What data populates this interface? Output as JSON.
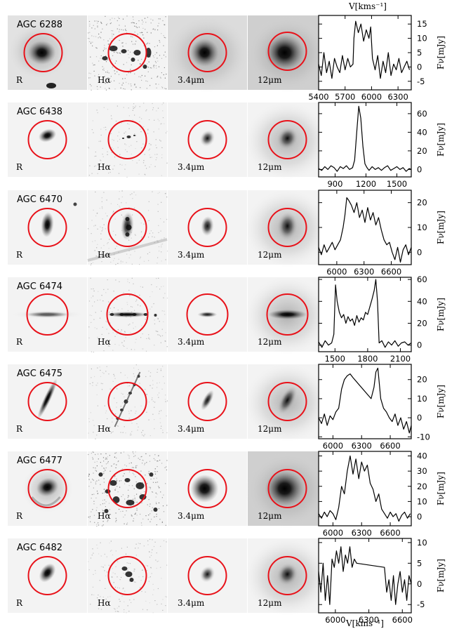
{
  "figure": {
    "top_axis_label": "V[kms⁻¹]",
    "bottom_axis_label": "V[kms⁻¹]",
    "flux_axis_label": "Fν[mJy]",
    "band_labels": [
      "R",
      "Hα",
      "3.4μm",
      "12μm"
    ],
    "colors": {
      "aperture": "#e8121a",
      "spectrum": "#000000"
    }
  },
  "galaxies": [
    {
      "name": "AGC 6288",
      "bands": [
        "R",
        "Hα",
        "3.4μm",
        "12μm"
      ],
      "morph": "round",
      "ha": "clumpy",
      "mid_ir": "extended"
    },
    {
      "name": "AGC 6438",
      "bands": [
        "R",
        "Hα",
        "3.4μm",
        "12μm"
      ],
      "morph": "small",
      "ha": "point",
      "mid_ir": "compact"
    },
    {
      "name": "AGC 6470",
      "bands": [
        "R",
        "Hα",
        "3.4μm",
        "12μm"
      ],
      "morph": "vertical",
      "ha": "knots",
      "mid_ir": "compact"
    },
    {
      "name": "AGC 6474",
      "bands": [
        "R",
        "Hα",
        "3.4μm",
        "12μm"
      ],
      "morph": "edge-on",
      "ha": "disk",
      "mid_ir": "edge-on"
    },
    {
      "name": "AGC 6475",
      "bands": [
        "R",
        "Hα",
        "3.4μm",
        "12μm"
      ],
      "morph": "tilted",
      "ha": "tilted",
      "mid_ir": "tilted"
    },
    {
      "name": "AGC 6477",
      "bands": [
        "R",
        "Hα",
        "3.4μm",
        "12μm"
      ],
      "morph": "spiral",
      "ha": "ring",
      "mid_ir": "extended"
    },
    {
      "name": "AGC 6482",
      "bands": [
        "R",
        "Hα",
        "3.4μm",
        "12μm"
      ],
      "morph": "small-tilted",
      "ha": "knots",
      "mid_ir": "compact"
    }
  ],
  "chart_data": [
    {
      "type": "line",
      "title": "AGC 6288",
      "xlabel": "V[kms⁻¹]",
      "ylabel": "Fν[mJy]",
      "xlim": [
        5400,
        6450
      ],
      "ylim": [
        -8,
        18
      ],
      "xticks": [
        5400,
        5700,
        6000,
        6300
      ],
      "yticks": [
        -5,
        0,
        5,
        10,
        15
      ],
      "x": [
        5400,
        5430,
        5460,
        5490,
        5520,
        5550,
        5580,
        5610,
        5640,
        5670,
        5700,
        5730,
        5760,
        5790,
        5800,
        5820,
        5850,
        5880,
        5910,
        5940,
        5970,
        5990,
        6010,
        6040,
        6070,
        6100,
        6130,
        6160,
        6190,
        6220,
        6250,
        6280,
        6310,
        6340,
        6370,
        6400,
        6430
      ],
      "y": [
        1,
        -3,
        5,
        -2,
        2,
        -4,
        3,
        0,
        -2,
        4,
        -1,
        3,
        0,
        1,
        10,
        16,
        12,
        15,
        9,
        13,
        10,
        14,
        3,
        -1,
        4,
        -4,
        2,
        -2,
        5,
        -3,
        1,
        -1,
        3,
        -2,
        0,
        2,
        -1
      ]
    },
    {
      "type": "line",
      "title": "AGC 6438",
      "xlabel": "V[kms⁻¹]",
      "ylabel": "Fν[mJy]",
      "xlim": [
        740,
        1640
      ],
      "ylim": [
        -8,
        72
      ],
      "xticks": [
        900,
        1200,
        1500
      ],
      "yticks": [
        0,
        20,
        40,
        60
      ],
      "x": [
        740,
        770,
        800,
        830,
        860,
        890,
        920,
        950,
        980,
        1010,
        1040,
        1070,
        1090,
        1110,
        1130,
        1150,
        1170,
        1190,
        1210,
        1230,
        1260,
        1290,
        1320,
        1350,
        1380,
        1410,
        1440,
        1470,
        1500,
        1530,
        1560,
        1590,
        1620,
        1640
      ],
      "y": [
        1,
        -1,
        3,
        0,
        4,
        2,
        -2,
        3,
        1,
        4,
        0,
        2,
        10,
        40,
        68,
        55,
        25,
        6,
        2,
        -1,
        3,
        0,
        2,
        -1,
        2,
        4,
        -1,
        1,
        3,
        0,
        2,
        -2,
        1,
        0
      ]
    },
    {
      "type": "line",
      "title": "AGC 6470",
      "xlabel": "V[kms⁻¹]",
      "ylabel": "Fν[mJy]",
      "xlim": [
        5800,
        6820
      ],
      "ylim": [
        -5,
        25
      ],
      "xticks": [
        6000,
        6300,
        6600
      ],
      "yticks": [
        0,
        10,
        20
      ],
      "x": [
        5800,
        5830,
        5860,
        5890,
        5920,
        5950,
        5980,
        6010,
        6040,
        6070,
        6090,
        6110,
        6130,
        6160,
        6190,
        6220,
        6250,
        6280,
        6310,
        6340,
        6370,
        6400,
        6430,
        6460,
        6490,
        6520,
        6550,
        6580,
        6610,
        6640,
        6670,
        6700,
        6730,
        6760,
        6790,
        6820
      ],
      "y": [
        2,
        -1,
        3,
        0,
        2,
        4,
        1,
        3,
        5,
        10,
        15,
        22,
        21,
        19,
        16,
        20,
        14,
        17,
        12,
        18,
        13,
        16,
        11,
        14,
        9,
        5,
        3,
        4,
        0,
        -3,
        2,
        -4,
        1,
        3,
        -1,
        2
      ]
    },
    {
      "type": "line",
      "title": "AGC 6474",
      "xlabel": "V[kms⁻¹]",
      "ylabel": "Fν[mJy]",
      "xlim": [
        1350,
        2200
      ],
      "ylim": [
        -6,
        62
      ],
      "xticks": [
        1500,
        1800,
        2100
      ],
      "yticks": [
        0,
        20,
        40,
        60
      ],
      "x": [
        1350,
        1380,
        1410,
        1440,
        1470,
        1490,
        1505,
        1520,
        1540,
        1560,
        1580,
        1600,
        1620,
        1640,
        1660,
        1680,
        1700,
        1720,
        1740,
        1760,
        1780,
        1800,
        1820,
        1840,
        1860,
        1875,
        1890,
        1905,
        1930,
        1960,
        1990,
        2020,
        2050,
        2080,
        2110,
        2140,
        2170,
        2200
      ],
      "y": [
        3,
        -2,
        4,
        0,
        2,
        10,
        55,
        40,
        30,
        25,
        28,
        20,
        26,
        22,
        24,
        18,
        27,
        21,
        25,
        23,
        30,
        28,
        35,
        42,
        50,
        60,
        40,
        2,
        4,
        -2,
        3,
        0,
        4,
        -1,
        2,
        3,
        0,
        2
      ]
    },
    {
      "type": "line",
      "title": "AGC 6475",
      "xlabel": "V[kms⁻¹]",
      "ylabel": "Fν[mJy]",
      "xlim": [
        5850,
        6820
      ],
      "ylim": [
        -11,
        28
      ],
      "xticks": [
        6000,
        6300,
        6600
      ],
      "yticks": [
        -10,
        0,
        10,
        20
      ],
      "x": [
        5850,
        5880,
        5910,
        5940,
        5970,
        6000,
        6030,
        6060,
        6090,
        6120,
        6150,
        6180,
        6210,
        6400,
        6430,
        6450,
        6470,
        6500,
        6530,
        6560,
        6590,
        6620,
        6650,
        6680,
        6710,
        6740,
        6770,
        6800,
        6820
      ],
      "y": [
        0,
        -3,
        2,
        -4,
        1,
        -1,
        3,
        5,
        15,
        20,
        22,
        23,
        21,
        10,
        16,
        24,
        26,
        10,
        5,
        3,
        0,
        -2,
        2,
        -4,
        0,
        -6,
        -2,
        -8,
        -4
      ]
    },
    {
      "type": "line",
      "title": "AGC 6477",
      "xlabel": "V[kms⁻¹]",
      "ylabel": "Fν[mJy]",
      "xlim": [
        5850,
        6820
      ],
      "ylim": [
        -6,
        43
      ],
      "xticks": [
        6000,
        6300,
        6600
      ],
      "yticks": [
        0,
        10,
        20,
        30,
        40
      ],
      "x": [
        5850,
        5880,
        5910,
        5940,
        5970,
        6000,
        6030,
        6060,
        6090,
        6120,
        6150,
        6180,
        6210,
        6240,
        6270,
        6300,
        6330,
        6360,
        6390,
        6420,
        6450,
        6480,
        6510,
        6540,
        6570,
        6600,
        6630,
        6660,
        6690,
        6720,
        6750,
        6780,
        6810
      ],
      "y": [
        2,
        -1,
        3,
        0,
        4,
        2,
        -2,
        6,
        20,
        15,
        30,
        40,
        28,
        38,
        25,
        36,
        30,
        34,
        22,
        18,
        10,
        15,
        5,
        2,
        -1,
        3,
        0,
        2,
        -3,
        1,
        3,
        -1,
        2
      ]
    },
    {
      "type": "line",
      "title": "AGC 6482",
      "xlabel": "V[kms⁻¹]",
      "ylabel": "Fν[mJy]",
      "xlim": [
        5850,
        6680
      ],
      "ylim": [
        -7,
        11
      ],
      "xticks": [
        6000,
        6300,
        6600
      ],
      "yticks": [
        -5,
        0,
        5,
        10
      ],
      "x": [
        5850,
        5870,
        5890,
        5910,
        5930,
        5950,
        5970,
        5990,
        6010,
        6030,
        6050,
        6070,
        6090,
        6110,
        6130,
        6150,
        6170,
        6190,
        6440,
        6460,
        6480,
        6500,
        6520,
        6540,
        6560,
        6580,
        6600,
        6620,
        6640,
        6660,
        6680
      ],
      "y": [
        3,
        -2,
        5,
        -4,
        2,
        -5,
        6,
        4,
        8,
        5,
        9,
        3,
        7,
        5,
        9,
        4,
        6,
        5,
        4,
        -2,
        1,
        -4,
        2,
        -5,
        0,
        3,
        -2,
        1,
        -4,
        2,
        0
      ]
    }
  ]
}
